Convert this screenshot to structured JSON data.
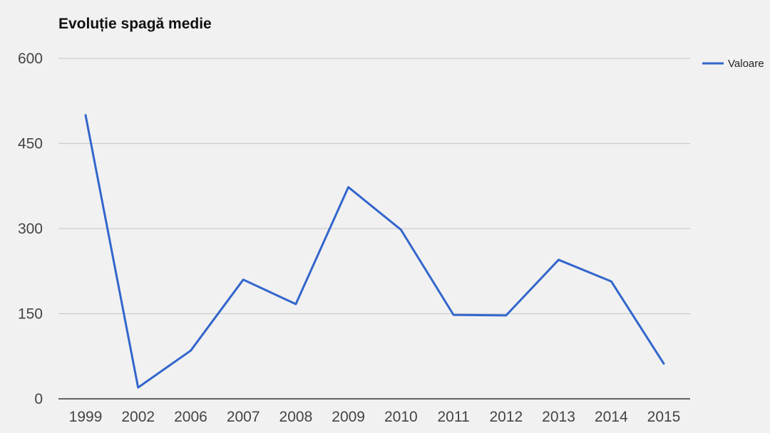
{
  "chart_data": {
    "type": "line",
    "title": "Evoluție spagă medie",
    "xlabel": "",
    "ylabel": "",
    "categories": [
      "1999",
      "2002",
      "2006",
      "2007",
      "2008",
      "2009",
      "2010",
      "2011",
      "2012",
      "2013",
      "2014",
      "2015"
    ],
    "series": [
      {
        "name": "Valoare",
        "color": "#3366cc",
        "values": [
          500,
          20,
          85,
          210,
          167,
          373,
          298,
          148,
          147,
          245,
          207,
          62
        ]
      }
    ],
    "yticks": [
      "0",
      "150",
      "300",
      "450",
      "600"
    ],
    "ylim": [
      0,
      600
    ],
    "grid": true,
    "legend": "right"
  }
}
